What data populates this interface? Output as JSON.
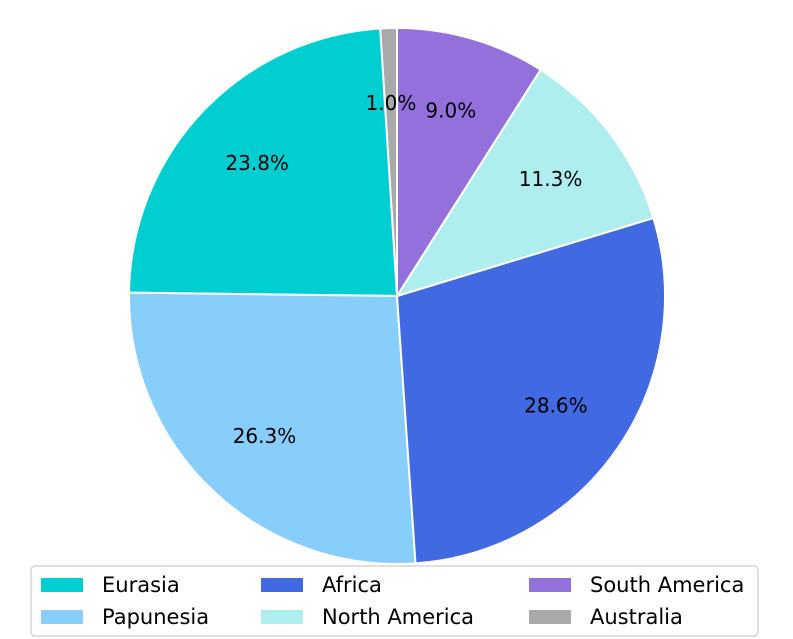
{
  "chart_data": {
    "type": "pie",
    "title": "",
    "start_angle_deg": 90,
    "direction": "counterclockwise",
    "legend_placement": "bottom-center",
    "legend_columns": 3,
    "slices": [
      {
        "label": "Australia",
        "value": 1.0,
        "pct_label": "1.0%",
        "color": "#a9a9a9"
      },
      {
        "label": "Eurasia",
        "value": 23.8,
        "pct_label": "23.8%",
        "color": "#00ced1"
      },
      {
        "label": "Papunesia",
        "value": 26.3,
        "pct_label": "26.3%",
        "color": "#87cefa"
      },
      {
        "label": "Africa",
        "value": 28.6,
        "pct_label": "28.6%",
        "color": "#4169e1"
      },
      {
        "label": "North America",
        "value": 11.3,
        "pct_label": "11.3%",
        "color": "#afeeee"
      },
      {
        "label": "South America",
        "value": 9.0,
        "pct_label": "9.0%",
        "color": "#9370db"
      }
    ],
    "legend_order": [
      "Eurasia",
      "Papunesia",
      "Africa",
      "North America",
      "South America",
      "Australia"
    ]
  }
}
